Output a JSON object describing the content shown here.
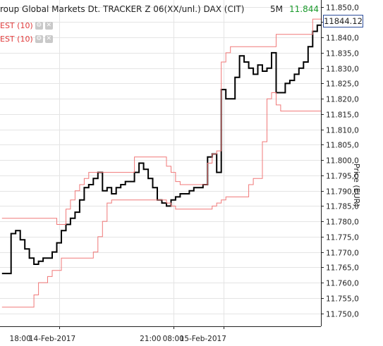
{
  "header": {
    "title": "roup Global Markets Dt. TRACKER Z 06(XX/unl.) DAX (CIT)",
    "interval": "5M",
    "last_value": "11.844",
    "current_price": "11844.12"
  },
  "indicators": [
    {
      "label": "EST (10)",
      "settings_icon": "gear-icon",
      "close_icon": "close-icon"
    },
    {
      "label": "EST (10)",
      "settings_icon": "gear-icon",
      "close_icon": "close-icon"
    }
  ],
  "colors": {
    "price": "#000000",
    "band": "#f07878",
    "grid": "#e4e4e4",
    "axis": "#222222"
  },
  "chart_data": {
    "type": "line",
    "title": "",
    "xlabel": "",
    "ylabel": "Price (EUR)",
    "ylim": [
      11747.5,
      11852
    ],
    "yticks": [
      11750,
      11755,
      11760,
      11765,
      11770,
      11775,
      11780,
      11785,
      11790,
      11795,
      11800,
      11805,
      11810,
      11815,
      11820,
      11825,
      11830,
      11835,
      11840,
      11845,
      11850
    ],
    "ytick_labels": [
      "11.750,0",
      "11.755,0",
      "11.760,0",
      "11.765,0",
      "11.770,0",
      "11.775,0",
      "11.780,0",
      "11.785,0",
      "11.790,0",
      "11.795,0",
      "11.800,0",
      "11.805,0",
      "11.810,0",
      "11.815,0",
      "11.820,0",
      "11.825,0",
      "11.830,0",
      "11.835,0",
      "11.840,0",
      "11.845,0",
      "11.850,0"
    ],
    "xtick_labels": [
      "18:00",
      "14-Feb-2017",
      "21:00",
      "08:00",
      "15-Feb-2017"
    ],
    "grid": true,
    "series": [
      {
        "role": "price",
        "values": [
          11763,
          11763,
          11776,
          11777,
          11774,
          11771,
          11768,
          11766,
          11767,
          11768,
          11768,
          11770,
          11773,
          11777,
          11779,
          11781,
          11783,
          11787,
          11791,
          11792,
          11794,
          11796,
          11790,
          11791,
          11789,
          11791,
          11792,
          11793,
          11793,
          11796,
          11799,
          11797,
          11794,
          11791,
          11787,
          11786,
          11785,
          11787,
          11788,
          11789,
          11789,
          11790,
          11791,
          11791,
          11792,
          11801,
          11802,
          11796,
          11823,
          11820,
          11820,
          11827,
          11834,
          11832,
          11830,
          11828,
          11831,
          11829,
          11830,
          11835,
          11822,
          11822,
          11825,
          11826,
          11828,
          11830,
          11832,
          11837,
          11842,
          11844
        ]
      },
      {
        "role": "upper",
        "values": [
          11781,
          11781,
          11781,
          11781,
          11781,
          11781,
          11781,
          11781,
          11781,
          11781,
          11781,
          11781,
          11779,
          11779,
          11784,
          11787,
          11790,
          11792,
          11794,
          11796,
          11796,
          11796,
          11796,
          11796,
          11796,
          11796,
          11796,
          11796,
          11796,
          11801,
          11801,
          11801,
          11801,
          11801,
          11801,
          11801,
          11798,
          11796,
          11793,
          11792,
          11792,
          11792,
          11792,
          11792,
          11792,
          11799,
          11802,
          11803,
          11832,
          11835,
          11837,
          11837,
          11837,
          11837,
          11837,
          11837,
          11837,
          11837,
          11837,
          11837,
          11841,
          11841,
          11841,
          11841,
          11841,
          11841,
          11841,
          11841,
          11846,
          11846
        ]
      },
      {
        "role": "lower",
        "values": [
          11752,
          11752,
          11752,
          11752,
          11752,
          11752,
          11752,
          11756,
          11760,
          11760,
          11762,
          11764,
          11764,
          11768,
          11768,
          11768,
          11768,
          11768,
          11768,
          11768,
          11770,
          11775,
          11780,
          11786,
          11787,
          11787,
          11787,
          11787,
          11787,
          11787,
          11787,
          11787,
          11787,
          11787,
          11787,
          11787,
          11786,
          11785,
          11784,
          11784,
          11784,
          11784,
          11784,
          11784,
          11784,
          11784,
          11785,
          11786,
          11787,
          11788,
          11788,
          11788,
          11788,
          11788,
          11792,
          11794,
          11794,
          11806,
          11820,
          11822,
          11818,
          11816,
          11816,
          11816,
          11816,
          11816,
          11816,
          11816,
          11816,
          11816
        ]
      }
    ]
  }
}
